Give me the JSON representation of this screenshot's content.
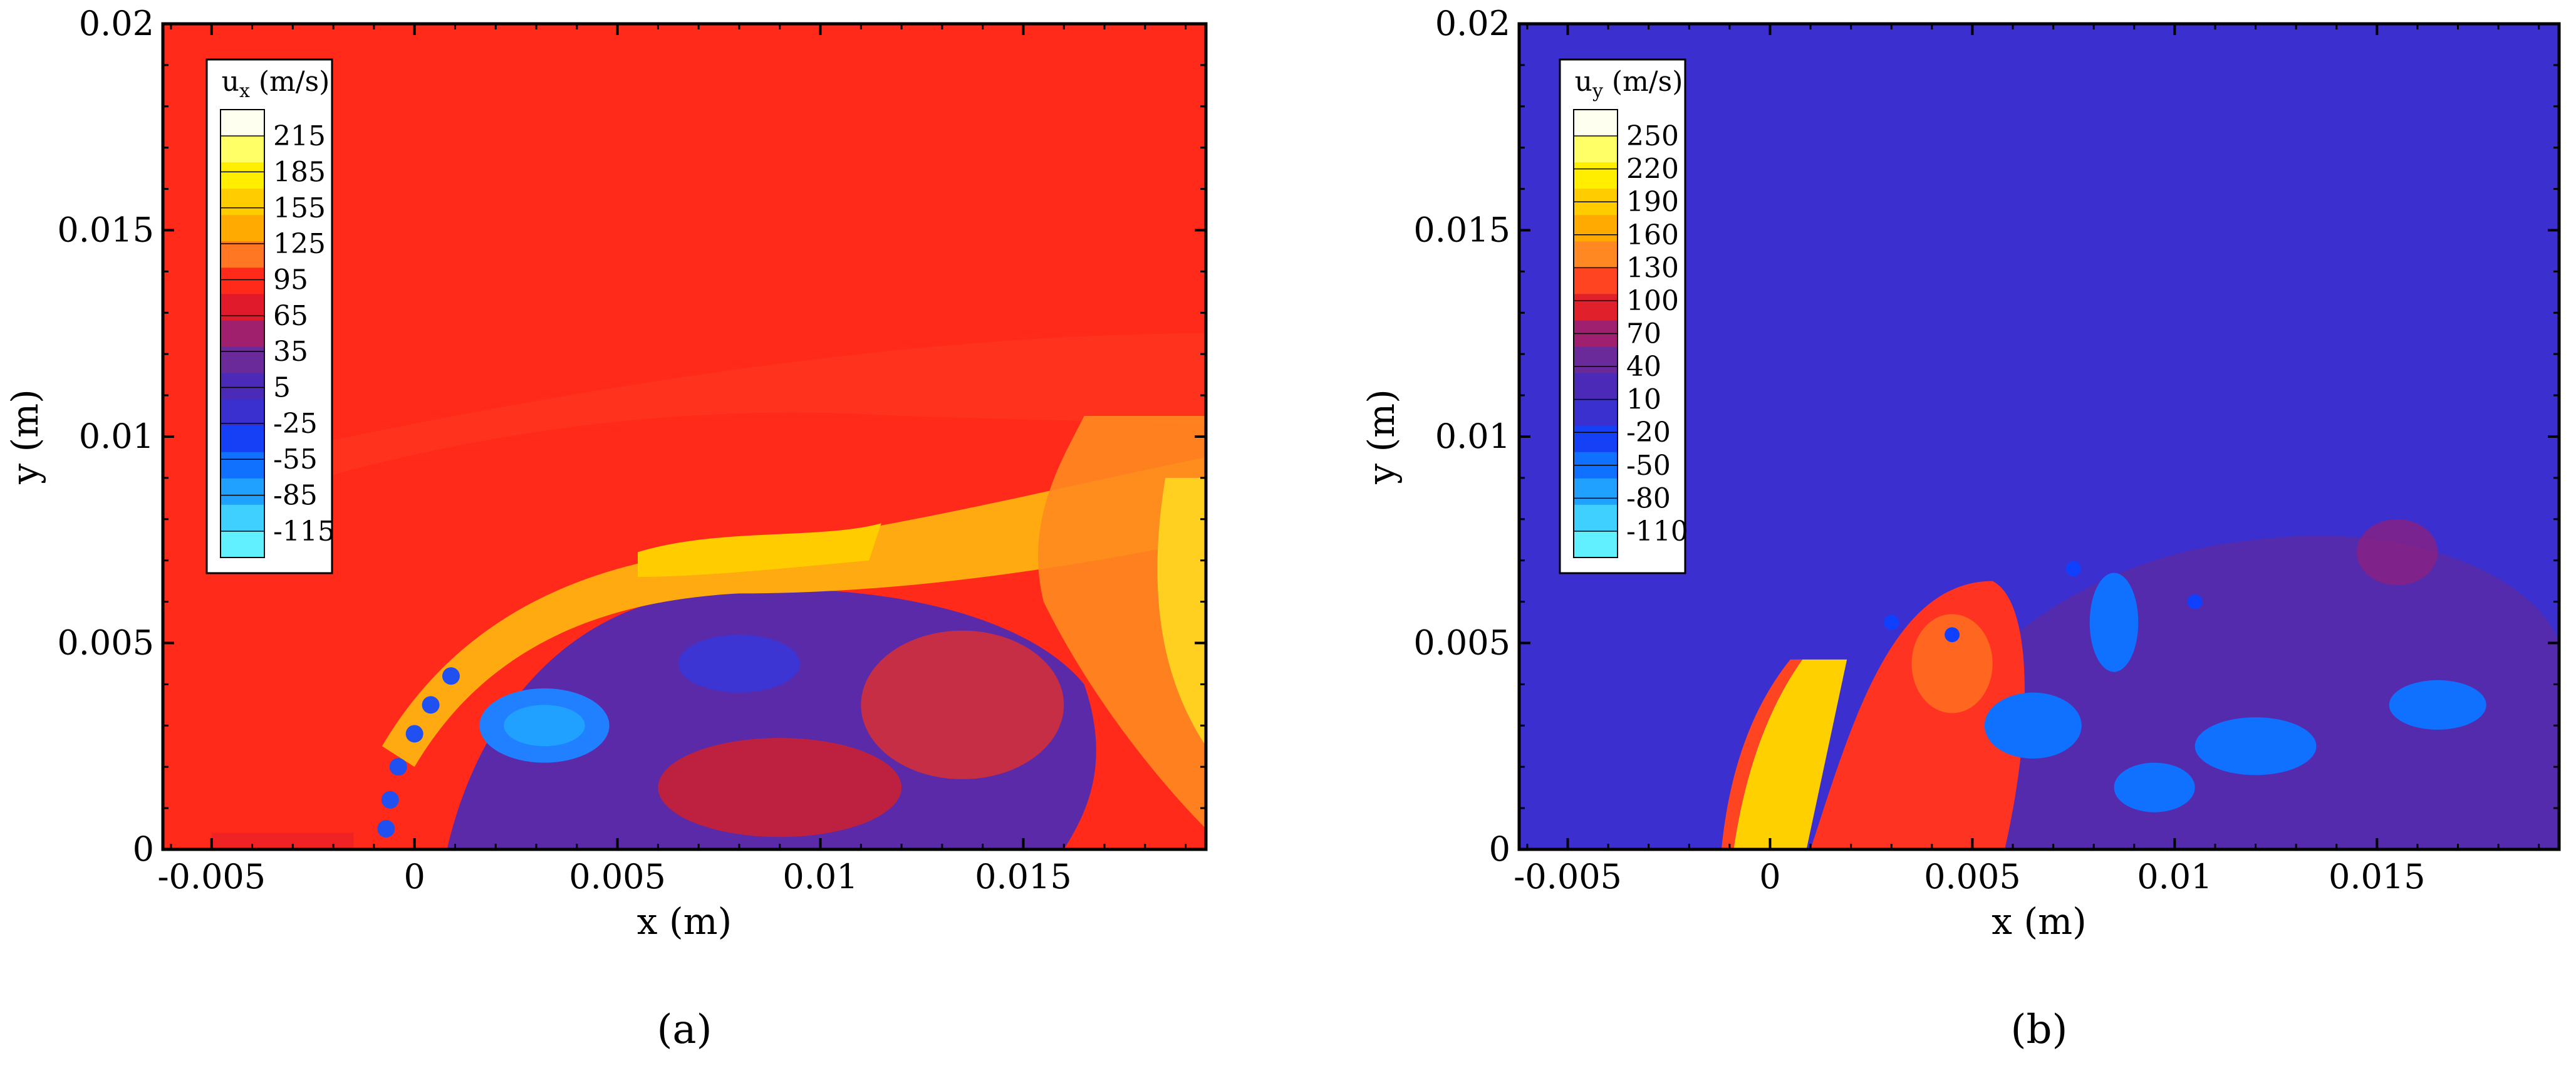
{
  "chart_data": [
    {
      "type": "heatmap",
      "panel_label": "(a)",
      "xlabel": "x (m)",
      "ylabel": "y (m)",
      "xlim": [
        -0.0062,
        0.0195
      ],
      "ylim": [
        0,
        0.02
      ],
      "xticks": [
        "-0.005",
        "0",
        "0.005",
        "0.01",
        "0.015"
      ],
      "xtick_values": [
        -0.005,
        0,
        0.005,
        0.01,
        0.015
      ],
      "yticks": [
        "0",
        "0.005",
        "0.01",
        "0.015",
        "0.02"
      ],
      "ytick_values": [
        0,
        0.005,
        0.01,
        0.015,
        0.02
      ],
      "colorbar": {
        "title_main": "u",
        "title_sub": "x",
        "title_unit": " (m/s)",
        "labels": [
          "215",
          "185",
          "155",
          "125",
          "95",
          "65",
          "35",
          "5",
          "-25",
          "-55",
          "-85",
          "-115"
        ],
        "colors": [
          "#fffff0",
          "#ffff66",
          "#ffee00",
          "#ffcc00",
          "#ffaa00",
          "#ff7722",
          "#ff2a1a",
          "#e01a2a",
          "#a0206e",
          "#6a2a9a",
          "#4b2ab8",
          "#3a2fcf",
          "#1540f5",
          "#1070ff",
          "#20a0ff",
          "#40d0ff",
          "#60f0ff"
        ],
        "location": "top-left"
      },
      "background_color": "#ff2a1a",
      "description_colors": {
        "freestream": "#ff2a1a",
        "shear_layer": "#ffcc00",
        "recirculation": "#5b2aa8",
        "reverse_flow": "#20a0ff"
      }
    },
    {
      "type": "heatmap",
      "panel_label": "(b)",
      "xlabel": "x (m)",
      "ylabel": "y (m)",
      "xlim": [
        -0.0062,
        0.0195
      ],
      "ylim": [
        0,
        0.02
      ],
      "xticks": [
        "-0.005",
        "0",
        "0.005",
        "0.01",
        "0.015"
      ],
      "xtick_values": [
        -0.005,
        0,
        0.005,
        0.01,
        0.015
      ],
      "yticks": [
        "0",
        "0.005",
        "0.01",
        "0.015",
        "0.02"
      ],
      "ytick_values": [
        0,
        0.005,
        0.01,
        0.015,
        0.02
      ],
      "colorbar": {
        "title_main": "u",
        "title_sub": "y",
        "title_unit": " (m/s)",
        "labels": [
          "250",
          "220",
          "190",
          "160",
          "130",
          "100",
          "70",
          "40",
          "10",
          "-20",
          "-50",
          "-80",
          "-110"
        ],
        "colors": [
          "#fffff0",
          "#ffff66",
          "#ffee00",
          "#ffcc00",
          "#ffaa00",
          "#ff8822",
          "#ff4422",
          "#e0202a",
          "#a02070",
          "#6a2a9a",
          "#4b2ab8",
          "#3a2fcf",
          "#1540f5",
          "#1070ff",
          "#20a0ff",
          "#40d0ff",
          "#60f0ff"
        ],
        "location": "top-left"
      },
      "background_color": "#3b2fd0",
      "description_colors": {
        "freestream": "#3b2fd0",
        "jet": "#ffd000",
        "shear_layer": "#ff3322",
        "negative": "#1070ff"
      }
    }
  ]
}
